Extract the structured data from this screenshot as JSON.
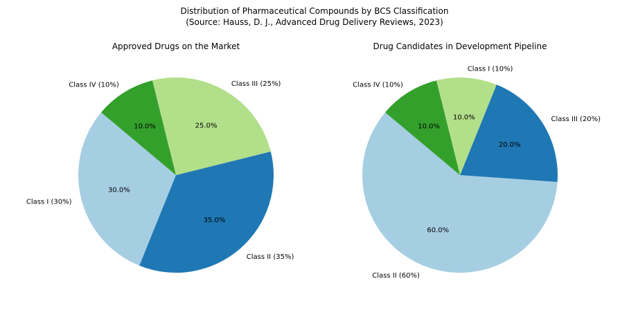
{
  "suptitle": [
    "Distribution of Pharmaceutical Compounds by BCS Classification",
    "(Source: Hauss, D. J., Advanced Drug Delivery Reviews, 2023)"
  ],
  "chart_data": [
    {
      "type": "pie",
      "title": "Approved Drugs on the Market",
      "start_angle": 140,
      "slices": [
        {
          "label": "Class I (30%)",
          "value": 30,
          "pct": "30.0%",
          "color": "#a6cee3"
        },
        {
          "label": "Class II (35%)",
          "value": 35,
          "pct": "35.0%",
          "color": "#1f78b4"
        },
        {
          "label": "Class III (25%)",
          "value": 25,
          "pct": "25.0%",
          "color": "#b2df8a"
        },
        {
          "label": "Class IV (10%)",
          "value": 10,
          "pct": "10.0%",
          "color": "#33a02c"
        }
      ]
    },
    {
      "type": "pie",
      "title": "Drug Candidates in Development Pipeline",
      "start_angle": 140,
      "slices": [
        {
          "label": "Class II (60%)",
          "value": 60,
          "pct": "60.0%",
          "color": "#a6cee3"
        },
        {
          "label": "Class III (20%)",
          "value": 20,
          "pct": "20.0%",
          "color": "#1f78b4"
        },
        {
          "label": "Class I (10%)",
          "value": 10,
          "pct": "10.0%",
          "color": "#b2df8a"
        },
        {
          "label": "Class IV (10%)",
          "value": 10,
          "pct": "10.0%",
          "color": "#33a02c"
        }
      ]
    }
  ]
}
